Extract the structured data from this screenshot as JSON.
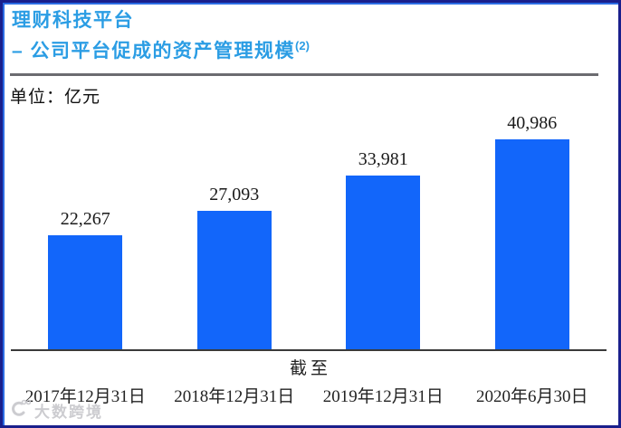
{
  "header": {
    "title": "理财科技平台",
    "subtitle": "– 公司平台促成的资产管理规模",
    "footnote_marker": "(2)"
  },
  "chart": {
    "unit_label": "单位：亿元"
  },
  "chart_data": {
    "type": "bar",
    "title": "理财科技平台 – 公司平台促成的资产管理规模(2)",
    "categories": [
      "2017年12月31日",
      "2018年12月31日",
      "2019年12月31日",
      "2020年6月30日"
    ],
    "values": [
      22267,
      27093,
      33981,
      40986
    ],
    "value_labels": [
      "22,267",
      "27,093",
      "33,981",
      "40,986"
    ],
    "xlabel": "截至",
    "ylabel": "单位：亿元",
    "ylim": [
      0,
      41000
    ],
    "grid": false,
    "legend": "none",
    "bar_color": "#1266fa"
  },
  "watermark": {
    "text": "大数跨境"
  },
  "colors": {
    "accent_blue": "#2b9de4",
    "bar_blue": "#1266fa",
    "border_navy": "#1a1f8c",
    "separator_gray": "#6b6b70",
    "axis_dark": "#3a3a3a"
  }
}
